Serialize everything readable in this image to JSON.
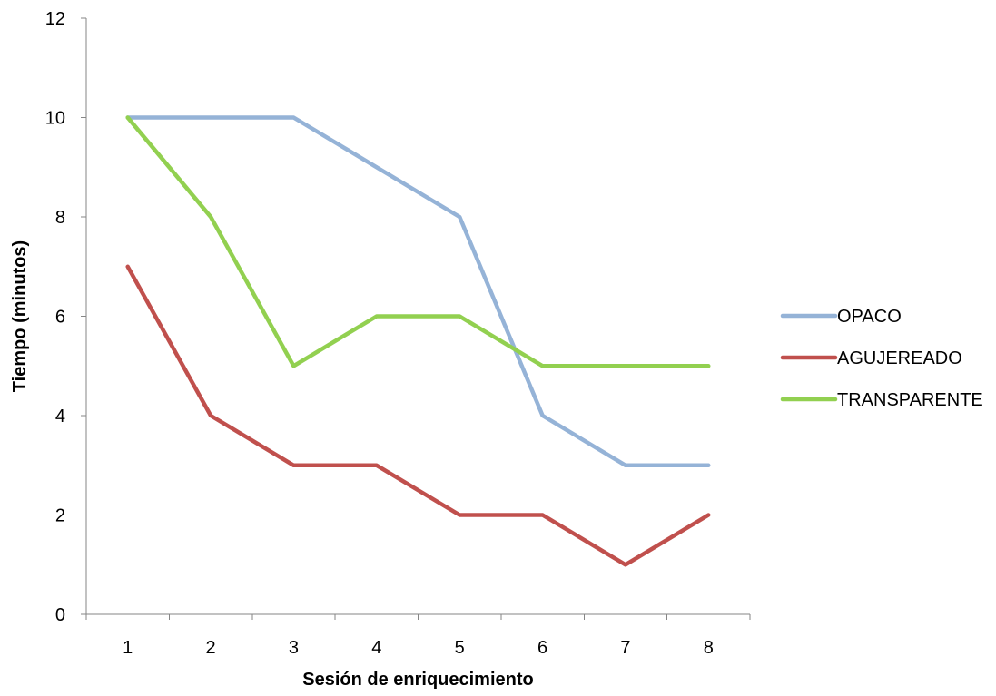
{
  "chart_data": {
    "type": "line",
    "title": "",
    "xlabel": "Sesión de enriquecimiento",
    "ylabel": "Tiempo (minutos)",
    "categories": [
      "1",
      "2",
      "3",
      "4",
      "5",
      "6",
      "7",
      "8"
    ],
    "ylim": [
      0,
      12
    ],
    "yticks": [
      0,
      2,
      4,
      6,
      8,
      10,
      12
    ],
    "grid": false,
    "legend_position": "right",
    "series": [
      {
        "name": "OPACO",
        "values": [
          10,
          10,
          10,
          9,
          8,
          4,
          3,
          3
        ],
        "color": "#95B3D7"
      },
      {
        "name": "AGUJEREADO",
        "values": [
          7,
          4,
          3,
          3,
          2,
          2,
          1,
          2
        ],
        "color": "#C0504D"
      },
      {
        "name": "TRANSPARENTE",
        "values": [
          10,
          8,
          5,
          6,
          6,
          5,
          5,
          5
        ],
        "color": "#92D050"
      }
    ]
  }
}
